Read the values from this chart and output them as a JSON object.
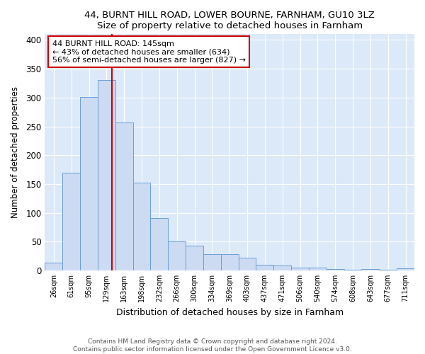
{
  "title1": "44, BURNT HILL ROAD, LOWER BOURNE, FARNHAM, GU10 3LZ",
  "title2": "Size of property relative to detached houses in Farnham",
  "xlabel": "Distribution of detached houses by size in Farnham",
  "ylabel": "Number of detached properties",
  "bar_color": "#ccdaf2",
  "bar_edge_color": "#6a9fd8",
  "categories": [
    "26sqm",
    "61sqm",
    "95sqm",
    "129sqm",
    "163sqm",
    "198sqm",
    "232sqm",
    "266sqm",
    "300sqm",
    "334sqm",
    "369sqm",
    "403sqm",
    "437sqm",
    "471sqm",
    "506sqm",
    "540sqm",
    "574sqm",
    "608sqm",
    "643sqm",
    "677sqm",
    "711sqm"
  ],
  "values": [
    14,
    170,
    301,
    330,
    257,
    152,
    91,
    50,
    43,
    28,
    28,
    22,
    10,
    9,
    5,
    5,
    2,
    1,
    2,
    1,
    4
  ],
  "ylim": [
    0,
    410
  ],
  "yticks": [
    0,
    50,
    100,
    150,
    200,
    250,
    300,
    350,
    400
  ],
  "vline_x": 3.3,
  "annotation_text": "44 BURNT HILL ROAD: 145sqm\n← 43% of detached houses are smaller (634)\n56% of semi-detached houses are larger (827) →",
  "annotation_box_color": "white",
  "annotation_box_edge": "#cc0000",
  "vline_color": "#cc0000",
  "footer1": "Contains HM Land Registry data © Crown copyright and database right 2024.",
  "footer2": "Contains public sector information licensed under the Open Government Licence v3.0.",
  "plot_bg_color": "#dce9f8",
  "grid_color": "white"
}
